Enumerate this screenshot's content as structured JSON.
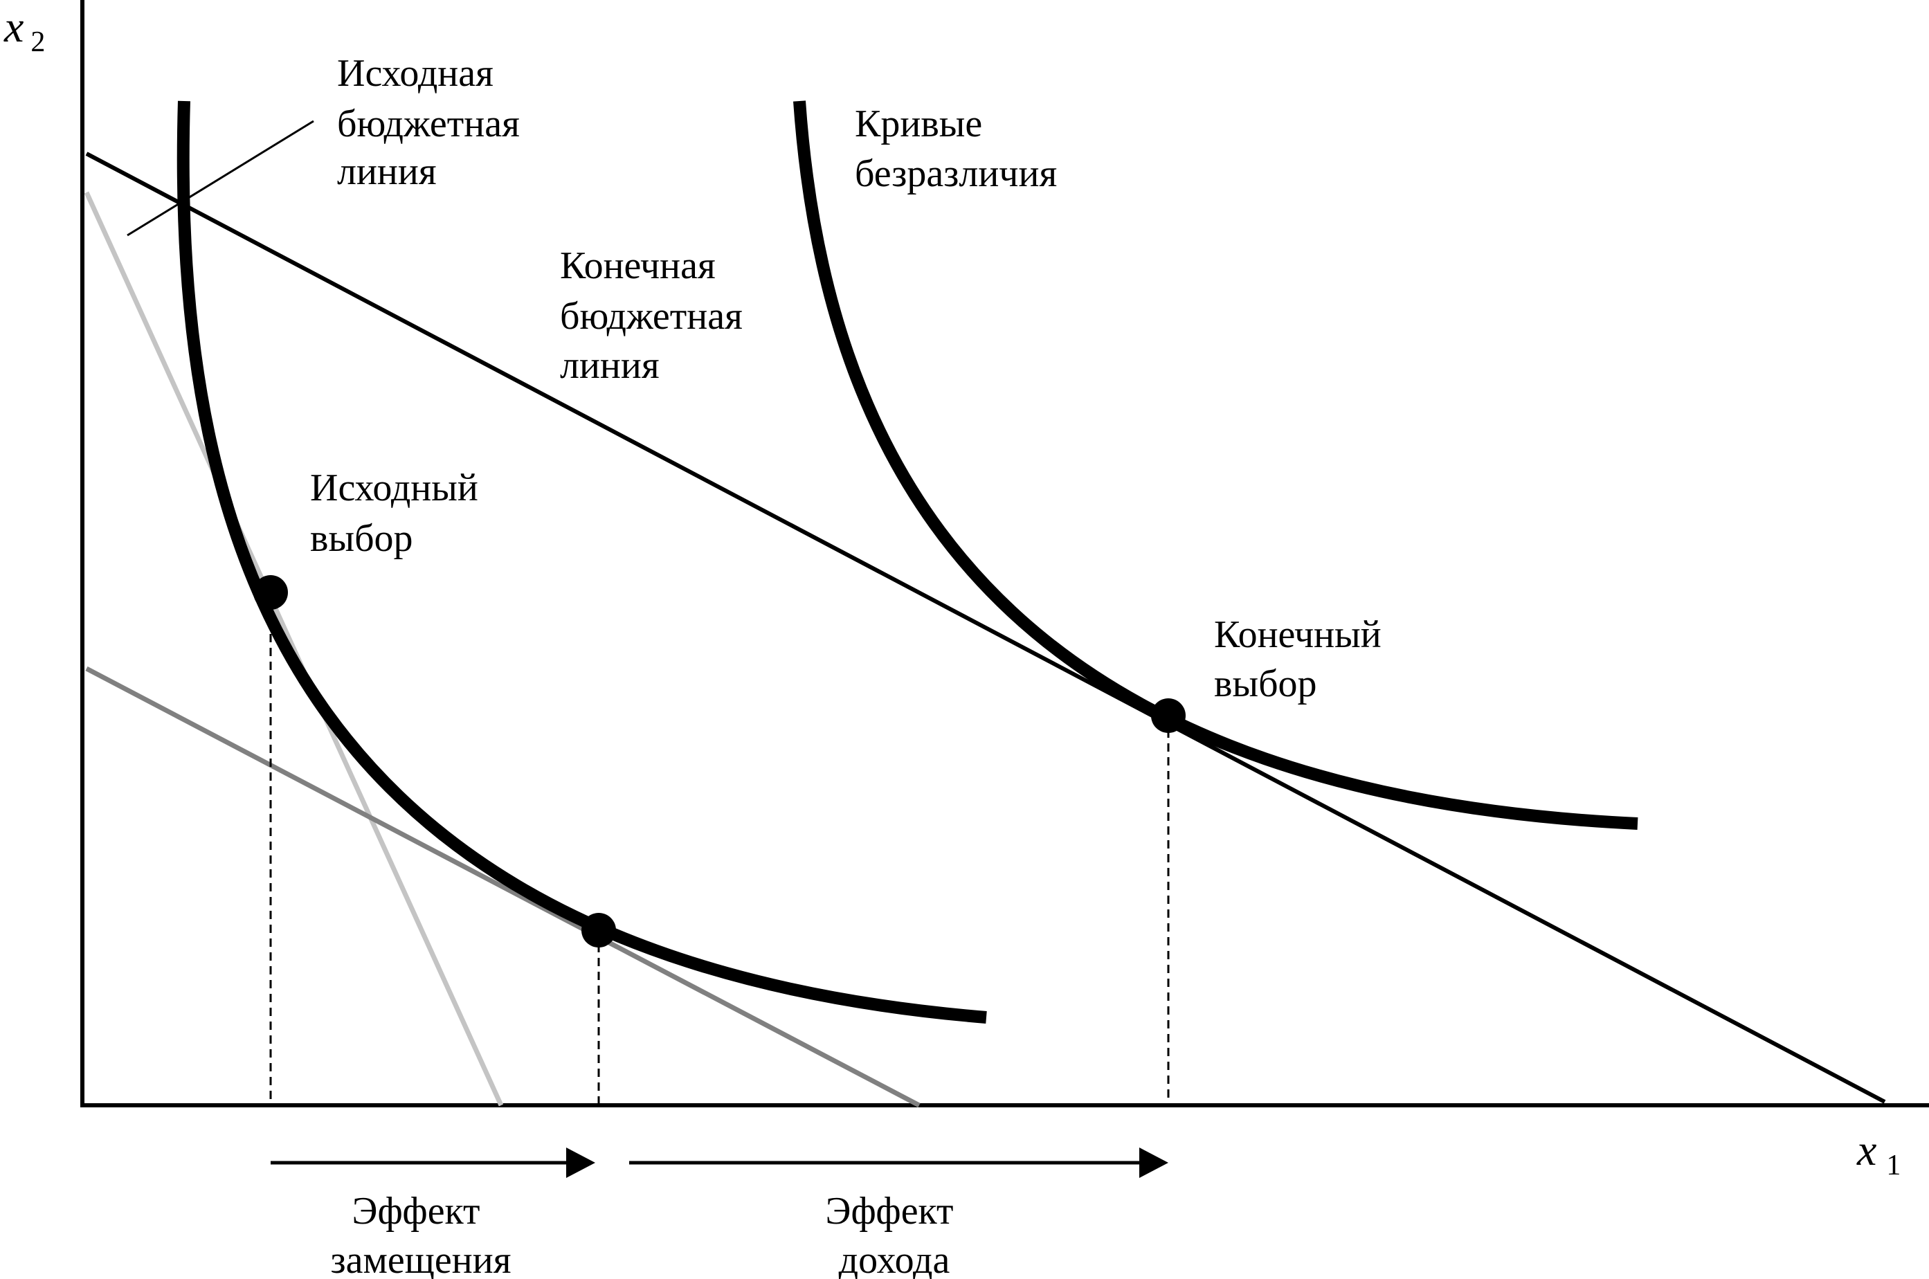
{
  "axes": {
    "y_var": "x",
    "y_sub": "2",
    "x_var": "x",
    "x_sub": "1"
  },
  "labels": {
    "initial_budget": [
      "Исходная",
      "бюджетная",
      "линия"
    ],
    "indifference_curves": [
      "Кривые",
      "безразличия"
    ],
    "final_budget": [
      "Конечная",
      "бюджетная",
      "линия"
    ],
    "initial_choice": [
      "Исходный",
      "выбор"
    ],
    "final_choice": [
      "Конечный",
      "выбор"
    ],
    "substitution_effect": [
      "Эффект",
      "замещения"
    ],
    "income_effect": [
      "Эффект",
      "дохода"
    ]
  },
  "colors": {
    "ink": "#000000",
    "initial_budget_line": "#c4c4c4",
    "compensated_budget_line": "#808080"
  }
}
